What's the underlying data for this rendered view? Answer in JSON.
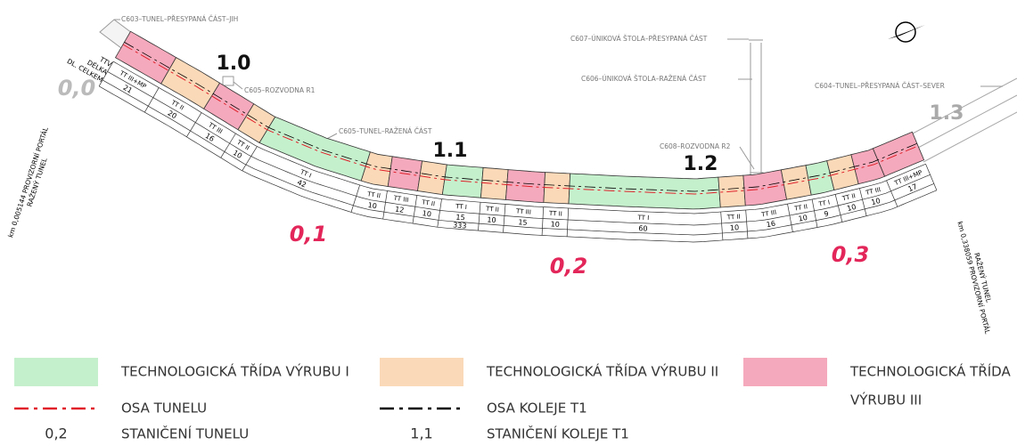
{
  "objects": [
    "C603–TUNEL–PŘESYPANÁ ČÁST–JIH",
    "C605–ROZVODNA R1",
    "C605–TUNEL–RAŽENÁ ČÁST",
    "C607–ÚNIKOVÁ ŠTOLA–PŘESYPANÁ ČÁST",
    "C606–ÚNIKOVÁ ŠTOLA–RAŽENÁ ČÁST",
    "C608–ROZVODNA R2",
    "C604–TUNEL–PŘESYPANÁ ČÁST–SEVER"
  ],
  "track_chainage": [
    "1.0",
    "1.1",
    "1.2",
    "1.3"
  ],
  "tunnel_chainage": [
    "0,0",
    "0,1",
    "0,2",
    "0,3"
  ],
  "portals": [
    {
      "line1": "km 0,005144 PROVIZORNÍ PORTÁL",
      "line2": "RAŽENÝ TUNEL"
    },
    {
      "line1": "km 0,338059 PROVIZORNÍ PORTÁL",
      "line2": "RAŽENÝ TUNEL"
    }
  ],
  "table": {
    "headers": [
      "TTV",
      "DÉLKA",
      "DL. CELKEM"
    ],
    "segments": [
      {
        "ttv": "TT III+MP",
        "length": 21
      },
      {
        "ttv": "TT II",
        "length": 20
      },
      {
        "ttv": "TT III",
        "length": 16
      },
      {
        "ttv": "TT II",
        "length": 10
      },
      {
        "ttv": "TT I",
        "length": 42
      },
      {
        "ttv": "TT II",
        "length": 10
      },
      {
        "ttv": "TT III",
        "length": 12
      },
      {
        "ttv": "TT II",
        "length": 10
      },
      {
        "ttv": "TT I",
        "length": 15
      },
      {
        "ttv": "TT II",
        "length": 10
      },
      {
        "ttv": "TT III",
        "length": 15
      },
      {
        "ttv": "TT II",
        "length": 10
      },
      {
        "ttv": "TT I",
        "length": 60
      },
      {
        "ttv": "TT II",
        "length": 10
      },
      {
        "ttv": "TT III",
        "length": 16
      },
      {
        "ttv": "TT II",
        "length": 10
      },
      {
        "ttv": "TT I",
        "length": 9
      },
      {
        "ttv": "TT II",
        "length": 10
      },
      {
        "ttv": "TT III",
        "length": 10
      },
      {
        "ttv": "TT III+MP",
        "length": 17
      }
    ],
    "total": 333
  },
  "legend": {
    "classes": [
      {
        "label": "TECHNOLOGICKÁ TŘÍDA VÝRUBU I",
        "color": "#c5f0cc"
      },
      {
        "label": "TECHNOLOGICKÁ TŘÍDA VÝRUBU II",
        "color": "#fad9b8"
      },
      {
        "label_lines": [
          "TECHNOLOGICKÁ TŘÍDA",
          "VÝRUBU III"
        ],
        "color": "#f5a9bc"
      }
    ],
    "lines": [
      {
        "label": "OSA TUNELU",
        "color": "#e0202a"
      },
      {
        "label": "OSA KOLEJE T1",
        "color": "#000000"
      }
    ],
    "chainage": [
      {
        "sample": "0,2",
        "label": "STANIČENÍ TUNELU",
        "color": "#e3265a"
      },
      {
        "sample": "1,1",
        "label": "STANIČENÍ KOLEJE T1",
        "color": "#000000"
      }
    ]
  }
}
